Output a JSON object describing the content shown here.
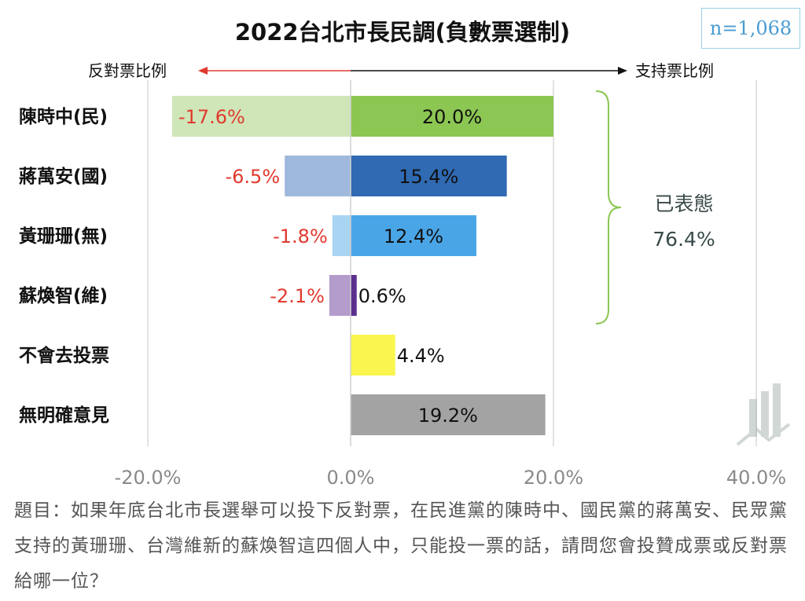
{
  "chart_data": {
    "type": "bar",
    "title": "2022台北市長民調(負數票選制)",
    "sample_label": "n=1,068",
    "left_arrow_label": "反對票比例",
    "right_arrow_label": "支持票比例",
    "categories": [
      "陳時中(民)",
      "蔣萬安(國)",
      "黃珊珊(無)",
      "蘇煥智(維)",
      "不會去投票",
      "無明確意見"
    ],
    "series": [
      {
        "name": "反對票比例",
        "values": [
          -17.6,
          -6.5,
          -1.8,
          -2.1,
          null,
          null
        ]
      },
      {
        "name": "支持票比例",
        "values": [
          20.0,
          15.4,
          12.4,
          0.6,
          4.4,
          19.2
        ]
      }
    ],
    "negative_labels": [
      "-17.6%",
      "-6.5%",
      "-1.8%",
      "-2.1%",
      "",
      ""
    ],
    "positive_labels": [
      "20.0%",
      "15.4%",
      "12.4%",
      "0.6%",
      "4.4%",
      "19.2%"
    ],
    "xlim": [
      -20,
      40
    ],
    "xticks": [
      -20,
      0,
      20,
      40
    ],
    "xtick_labels": [
      "-20.0%",
      "0.0%",
      "20.0%",
      "40.0%"
    ],
    "colors": {
      "negative": [
        "#cfe6b8",
        "#9fb9dd",
        "#a9d4f2",
        "#b39bcc",
        "#ffffff",
        "#ffffff"
      ],
      "positive": [
        "#8cc653",
        "#2f6ab3",
        "#4aa5e6",
        "#5b2f8f",
        "#faf64f",
        "#a3a3a3"
      ],
      "negative_text": "#e03a2f",
      "grid": "#d9d9d9",
      "axis_zero": "#d0d0d0",
      "tick_text": "#8a8a8a",
      "left_arrow": "#e03a2f",
      "right_arrow": "#111111",
      "bracket": "#8cc653"
    },
    "annotation": {
      "label": "已表態",
      "value": "76.4%"
    },
    "question": "題目：如果年底台北市長選舉可以投下反對票，在民進黨的陳時中、國民黨的蔣萬安、民眾黨支持的黃珊珊、台灣維新的蘇煥智這四個人中，只能投一票的話，請問您會投贊成票或反對票給哪一位？"
  }
}
